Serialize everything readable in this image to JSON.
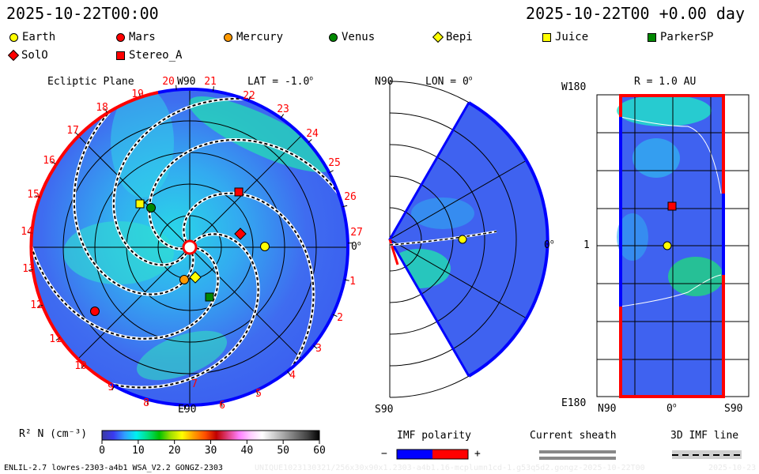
{
  "header": {
    "left_time": "2025-10-22T00:00",
    "right_time": "2025-10-22T00 +0.00 day"
  },
  "legend": [
    {
      "label": "Earth",
      "shape": "circle",
      "color": "#ffff00"
    },
    {
      "label": "Mars",
      "shape": "circle",
      "color": "#ff0000"
    },
    {
      "label": "Mercury",
      "shape": "circle",
      "color": "#ff9900"
    },
    {
      "label": "Venus",
      "shape": "circle",
      "color": "#008800"
    },
    {
      "label": "Bepi",
      "shape": "diamond",
      "color": "#ffff00"
    },
    {
      "label": "Juice",
      "shape": "square",
      "color": "#ffff00"
    },
    {
      "label": "ParkerSP",
      "shape": "square",
      "color": "#008800"
    },
    {
      "label": "SolO",
      "shape": "diamond",
      "color": "#ff0000"
    },
    {
      "label": "Stereo_A",
      "shape": "square",
      "color": "#ff0000"
    }
  ],
  "ecliptic": {
    "title": "Ecliptic Plane",
    "top_label": "W90",
    "bottom_label": "E90",
    "right_label": "0",
    "lat": "LAT = -1.0",
    "ticks": [
      "1",
      "2",
      "3",
      "4",
      "5",
      "6",
      "7",
      "8",
      "9",
      "10",
      "11",
      "12",
      "13",
      "14",
      "15",
      "16",
      "17",
      "18",
      "19",
      "20",
      "21",
      "22",
      "23",
      "24",
      "25",
      "26",
      "27"
    ]
  },
  "meridional": {
    "top_label": "N90",
    "bottom_label": "S90",
    "lon": "LON = 0",
    "right_label": "0"
  },
  "radial": {
    "title": "R = 1.0 AU",
    "top_left": "W180",
    "mid_left": "1",
    "bottom_left": "E180",
    "x_labels": [
      "N90",
      "0",
      "S90"
    ]
  },
  "colorbar": {
    "label": "R² N (cm⁻³)",
    "ticks": [
      "0",
      "10",
      "20",
      "30",
      "40",
      "50",
      "60"
    ]
  },
  "imf": {
    "title": "IMF polarity",
    "minus": "−",
    "plus": "+",
    "neg_color": "#0000ff",
    "pos_color": "#ff0000"
  },
  "sheath": {
    "title": "Current sheath"
  },
  "imf_line": {
    "title": "3D IMF line"
  },
  "footer": {
    "model": "ENLIL-2.7 lowres-2303-a4b1 WSA_V2.2 GONGZ-2303",
    "unique": "UNIQUE1023130321/256x30x90x1.2303-a4b1.16-mcplumn1cd-1.g53q5d2.gongz-2025-10-22T00",
    "date": "2025-10-23"
  }
}
